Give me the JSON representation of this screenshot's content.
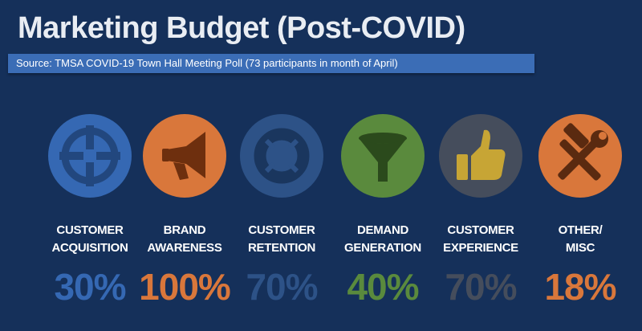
{
  "title": "Marketing Budget (Post-COVID)",
  "source": "Source: TMSA COVID-19 Town Hall Meeting Poll (73 participants in month of April)",
  "colors": {
    "background": "#15305a",
    "source_bar": "#3b6db6",
    "acquisition": "#3568b3",
    "awareness": "#d9773b",
    "retention": "#2d5287",
    "demand": "#5a8a3d",
    "experience": "#454d5c",
    "other": "#d9773b"
  },
  "items": [
    {
      "label_line1": "CUSTOMER",
      "label_line2": "ACQUISITION",
      "value": "30%",
      "icon": "crosshair-icon"
    },
    {
      "label_line1": "BRAND",
      "label_line2": "AWARENESS",
      "value": "100%",
      "icon": "megaphone-icon"
    },
    {
      "label_line1": "CUSTOMER",
      "label_line2": "RETENTION",
      "value": "70%",
      "icon": "life-ring-icon"
    },
    {
      "label_line1": "DEMAND",
      "label_line2": "GENERATION",
      "value": "40%",
      "icon": "funnel-icon"
    },
    {
      "label_line1": "CUSTOMER",
      "label_line2": "EXPERIENCE",
      "value": "70%",
      "icon": "thumbs-up-icon"
    },
    {
      "label_line1": "OTHER/",
      "label_line2": "MISC",
      "value": "18%",
      "icon": "hammer-wrench-icon"
    }
  ]
}
